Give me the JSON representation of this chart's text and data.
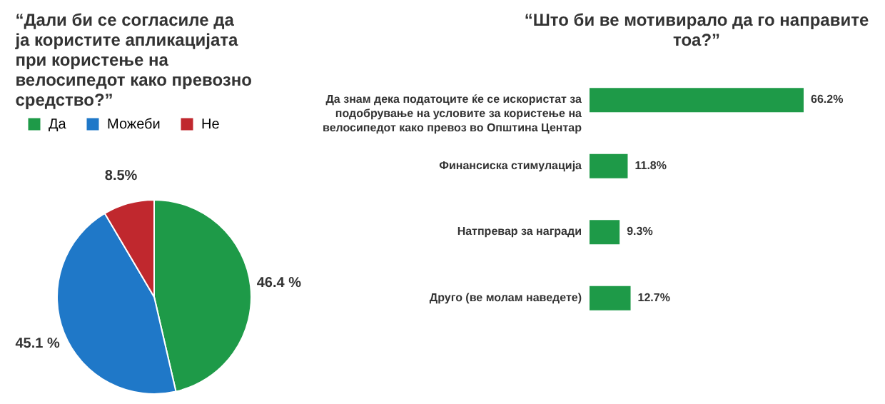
{
  "chart_data": [
    {
      "type": "pie",
      "title": "“Дали би се согласиле да ја користите апликацијата при користење на велосипедот како превозно средство?”",
      "categories": [
        "Да",
        "Можеби",
        "Не"
      ],
      "values": [
        46.4,
        45.1,
        8.5
      ],
      "colors": [
        "#1e9a48",
        "#1f78c8",
        "#c0282e"
      ],
      "value_labels": [
        "46.4 %",
        "45.1 %",
        "8.5%"
      ],
      "legend": "top"
    },
    {
      "type": "bar",
      "orientation": "horizontal",
      "title": "“Што би ве мотивирало да го направите тоа?”",
      "categories": [
        "Да знам дека податоците ќе се искористат за подобрување на условите за користење на велосипедот како превоз во Општина Центар",
        "Финансиска стимулација",
        "Натпревар за награди",
        "Друго (ве молам наведете)"
      ],
      "values": [
        66.2,
        11.8,
        9.3,
        12.7
      ],
      "color": "#1e9a48",
      "value_labels": [
        "66.2%",
        "11.8%",
        "9.3%",
        "12.7%"
      ]
    }
  ]
}
